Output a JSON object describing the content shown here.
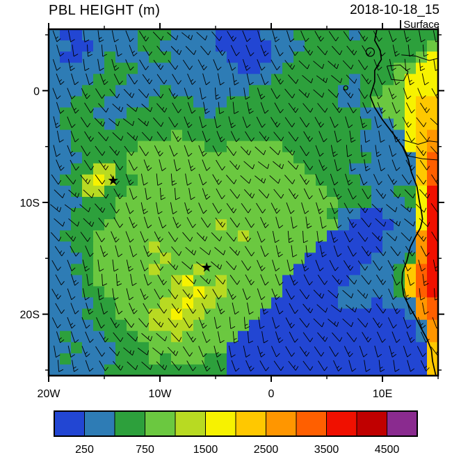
{
  "header": {
    "title": "PBL HEIGHT (m)",
    "date": "2018-10-18_15",
    "level": "Surface"
  },
  "chart_data": {
    "type": "heatmap",
    "title": "PBL HEIGHT (m)",
    "timestamp": "2018-10-18_15",
    "level": "Surface",
    "field": "planetary boundary layer height in meters with surface wind barbs, South Atlantic / Angola-Namibia coast",
    "extent": {
      "lon_min": -20,
      "lon_max": 15,
      "lat_min": -25.5,
      "lat_max": 5.5
    },
    "xticks": [
      {
        "label": "20W",
        "lon": -20
      },
      {
        "label": "10W",
        "lon": -10
      },
      {
        "label": "0",
        "lon": 0
      },
      {
        "label": "10E",
        "lon": 10
      }
    ],
    "yticks": [
      {
        "label": "0",
        "lat": 0
      },
      {
        "label": "10S",
        "lat": -10
      },
      {
        "label": "20S",
        "lat": -20
      }
    ],
    "minor_xticks": [
      -15,
      -5,
      5,
      15
    ],
    "minor_yticks": [
      5,
      -5,
      -15,
      -25
    ],
    "colorbar": {
      "levels": [
        250,
        500,
        750,
        1000,
        1500,
        2000,
        2500,
        3000,
        3500,
        4000,
        4500
      ],
      "colors": [
        "#2246d3",
        "#2e7cb5",
        "#2da03c",
        "#6bc840",
        "#b8da22",
        "#f7f200",
        "#ffc800",
        "#ff9600",
        "#ff5f00",
        "#f01000",
        "#c00000",
        "#8a2b8f"
      ],
      "labels": [
        {
          "text": "250",
          "boundary": 1
        },
        {
          "text": "750",
          "boundary": 3
        },
        {
          "text": "1500",
          "boundary": 5
        },
        {
          "text": "2500",
          "boundary": 7
        },
        {
          "text": "3500",
          "boundary": 9
        },
        {
          "text": "4500",
          "boundary": 11
        }
      ]
    },
    "grid": {
      "note": "coarse 35x31 (1-degree) field of PBL-height color-class indices, 0=lowest(250m class) .. 9=red(3500-4000m); read left=20W to right=15E, top=5.5N to bottom=25.5S",
      "cols": 35,
      "rows": 31,
      "cells": [
        "10011111222111100001112222212222222",
        "11001111221111100000111222222222223",
        "10011211122111110000112222222222235",
        "11111222111111111001122222222223355",
        "11112221111111111111222222212223555",
        "11122211112111111122222222112233555",
        "11222111122221112222222222112333566",
        "12221112222222122222222222221133566",
        "12222122222222222222222222222113566",
        "11222222222322222222222222221111567",
        "11222222333333223333322222221111567",
        "11122223333333333333332222222111168",
        "11224423333333333333333222211111168",
        "12245422333333333333333322221111168",
        "11244223333333333333333332222112259",
        "11122233333333333333333333222111259",
        "11222233333333333333333332110011159",
        "11222333333333343333333333100001159",
        "12223333333333333433333330000011179",
        "11223333343333333333333300000011179",
        "11123333334333333333333000000111279",
        "11223333343334333333330000001112689",
        "11123333333453343333300000011112689",
        "11122333333445443333300000111112689",
        "11112233334454433333000000111011178",
        "11122233344544333330000000000000178",
        "11112223344443333300000000000000017",
        "12111222333433333000000000000000017",
        "11211122233333330000000000000000006",
        "12111122232333220000000000000000006",
        "11111222222222220000000000000000006"
      ]
    },
    "markers": [
      {
        "type": "star",
        "lon": -14.2,
        "lat": -8.0
      },
      {
        "type": "star",
        "lon": -5.8,
        "lat": -15.8
      }
    ],
    "coastline": [
      [
        9.5,
        5.5
      ],
      [
        9.3,
        4.5
      ],
      [
        9.8,
        3.6
      ],
      [
        9.9,
        2.8
      ],
      [
        9.3,
        1.8
      ],
      [
        9.3,
        0.8
      ],
      [
        8.9,
        -0.5
      ],
      [
        9.3,
        -1.5
      ],
      [
        10.0,
        -2.6
      ],
      [
        11.0,
        -3.9
      ],
      [
        11.8,
        -5.0
      ],
      [
        12.3,
        -6.1
      ],
      [
        12.6,
        -7.3
      ],
      [
        13.1,
        -8.6
      ],
      [
        13.3,
        -9.8
      ],
      [
        13.5,
        -10.8
      ],
      [
        13.6,
        -11.5
      ],
      [
        13.4,
        -12.3
      ],
      [
        12.9,
        -13.2
      ],
      [
        12.5,
        -14.0
      ],
      [
        12.2,
        -15.2
      ],
      [
        11.8,
        -16.3
      ],
      [
        11.75,
        -17.2
      ],
      [
        11.9,
        -18.3
      ],
      [
        12.4,
        -19.3
      ],
      [
        13.0,
        -20.3
      ],
      [
        13.5,
        -21.3
      ],
      [
        14.0,
        -22.2
      ],
      [
        14.4,
        -23.2
      ],
      [
        14.5,
        -24.2
      ],
      [
        14.8,
        -25.5
      ]
    ],
    "borders": [
      [
        [
          11.8,
          -4.4
        ],
        [
          13.2,
          -4.8
        ],
        [
          14.2,
          -4.5
        ],
        [
          15,
          -4.6
        ]
      ],
      [
        [
          12.1,
          -5.8
        ],
        [
          13.6,
          -6.1
        ],
        [
          15,
          -6.2
        ]
      ],
      [
        [
          10.4,
          2.2
        ],
        [
          11.6,
          2.3
        ],
        [
          12.3,
          1.7
        ],
        [
          11.9,
          0.9
        ],
        [
          10.8,
          1.0
        ],
        [
          10.4,
          2.2
        ]
      ],
      [
        [
          11.7,
          3.2
        ],
        [
          13.0,
          3.1
        ],
        [
          14.2,
          2.7
        ],
        [
          15,
          2.9
        ]
      ]
    ],
    "islands": [
      {
        "name": "bioko",
        "lon": 8.9,
        "lat": 3.45,
        "r": 6
      },
      {
        "name": "sao-tome",
        "lon": 6.7,
        "lat": 0.25,
        "r": 3
      }
    ],
    "wind": {
      "style": "barbs",
      "note": "dense southeasterly trade-wind barbs over whole domain"
    }
  }
}
